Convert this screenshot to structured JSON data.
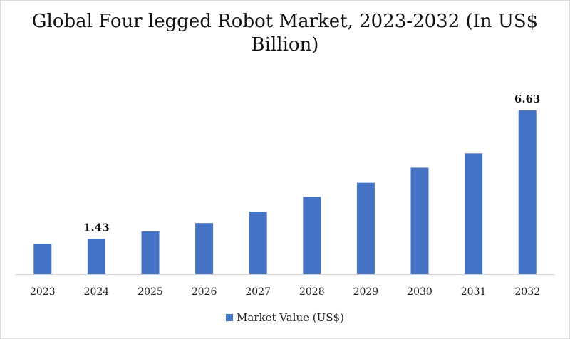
{
  "chart_data": {
    "type": "bar",
    "title": "Global Four legged Robot Market, 2023-2032 (In US$ Billion)",
    "categories": [
      "2023",
      "2024",
      "2025",
      "2026",
      "2027",
      "2028",
      "2029",
      "2030",
      "2031",
      "2032"
    ],
    "series": [
      {
        "name": "Market Value (US$)",
        "values": [
          1.24,
          1.43,
          1.73,
          2.07,
          2.53,
          3.13,
          3.7,
          4.31,
          4.89,
          6.63
        ],
        "color": "#4472c4"
      }
    ],
    "data_labels": {
      "2024": "1.43",
      "2032": "6.63"
    },
    "ylim": [
      0,
      6.63
    ],
    "grid": false,
    "legend": "bottom"
  }
}
